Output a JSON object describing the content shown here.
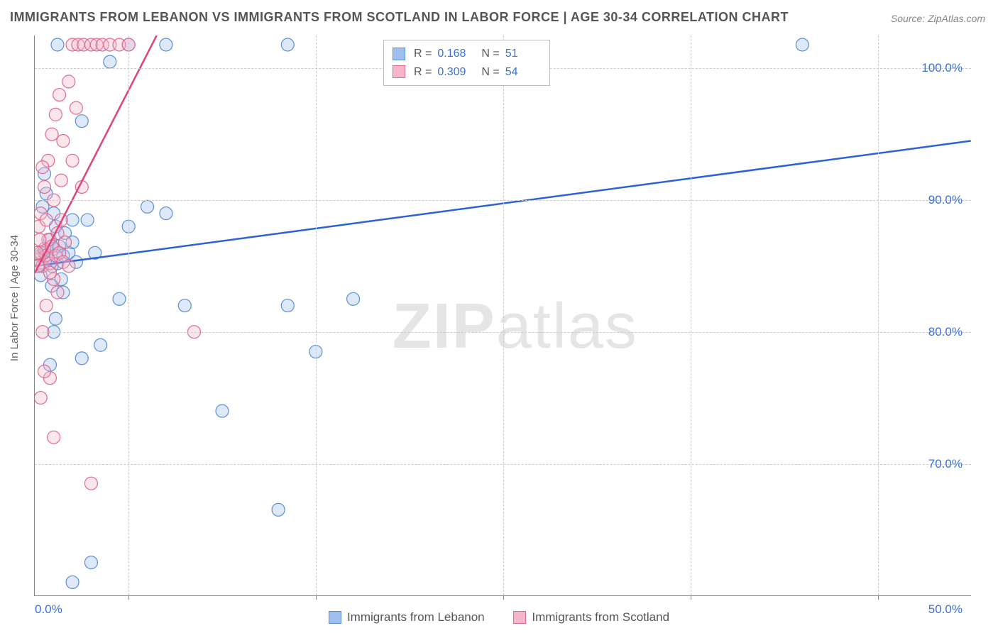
{
  "title": "IMMIGRANTS FROM LEBANON VS IMMIGRANTS FROM SCOTLAND IN LABOR FORCE | AGE 30-34 CORRELATION CHART",
  "source": "Source: ZipAtlas.com",
  "watermark_a": "ZIP",
  "watermark_b": "atlas",
  "chart": {
    "type": "scatter",
    "background_color": "#ffffff",
    "grid_color": "#cccccc",
    "axis_color": "#888888",
    "tick_label_color": "#3b6fd6",
    "axis_label_color": "#666666",
    "ylabel": "In Labor Force | Age 30-34",
    "label_fontsize": 15,
    "tick_fontsize": 17,
    "xlim": [
      0,
      50
    ],
    "ylim": [
      60,
      102.5
    ],
    "x_ticks": [
      5,
      15,
      25,
      35,
      45
    ],
    "x_tick_minor_left": "0.0%",
    "x_tick_minor_right": "50.0%",
    "y_ticks": [
      {
        "v": 70,
        "label": "70.0%"
      },
      {
        "v": 80,
        "label": "80.0%"
      },
      {
        "v": 90,
        "label": "90.0%"
      },
      {
        "v": 100,
        "label": "100.0%"
      }
    ],
    "marker_radius": 9,
    "marker_opacity": 0.35,
    "series": [
      {
        "name": "Immigrants from Lebanon",
        "color_fill": "#9fc0ee",
        "color_stroke": "#5a8fd6",
        "R": "0.168",
        "N": "51",
        "trend": {
          "x1": 0,
          "y1": 85.0,
          "x2": 50,
          "y2": 94.5,
          "stroke": "#2c62d4",
          "width": 2.5
        },
        "points": [
          [
            0.3,
            85.8
          ],
          [
            0.5,
            86.0
          ],
          [
            0.6,
            86.2
          ],
          [
            0.7,
            85.5
          ],
          [
            0.8,
            87.0
          ],
          [
            0.9,
            85.0
          ],
          [
            1.0,
            86.3
          ],
          [
            1.1,
            88.0
          ],
          [
            1.2,
            85.2
          ],
          [
            1.3,
            86.5
          ],
          [
            1.4,
            84.0
          ],
          [
            1.5,
            85.8
          ],
          [
            1.6,
            87.5
          ],
          [
            1.8,
            86.0
          ],
          [
            2.0,
            88.5
          ],
          [
            2.2,
            85.3
          ],
          [
            0.4,
            89.5
          ],
          [
            0.6,
            90.5
          ],
          [
            1.0,
            89.0
          ],
          [
            1.2,
            101.8
          ],
          [
            5.0,
            101.8
          ],
          [
            7.0,
            101.8
          ],
          [
            13.5,
            101.8
          ],
          [
            41.0,
            101.8
          ],
          [
            2.0,
            61.0
          ],
          [
            3.0,
            62.5
          ],
          [
            2.5,
            78.0
          ],
          [
            3.5,
            79.0
          ],
          [
            4.5,
            82.5
          ],
          [
            5.0,
            88.0
          ],
          [
            6.0,
            89.5
          ],
          [
            7.0,
            89.0
          ],
          [
            8.0,
            82.0
          ],
          [
            10.0,
            74.0
          ],
          [
            13.0,
            66.5
          ],
          [
            13.5,
            82.0
          ],
          [
            15.0,
            78.5
          ],
          [
            17.0,
            82.5
          ],
          [
            0.8,
            77.5
          ],
          [
            1.0,
            80.0
          ],
          [
            1.5,
            83.0
          ],
          [
            2.0,
            86.8
          ],
          [
            0.5,
            92.0
          ],
          [
            0.3,
            84.3
          ],
          [
            0.9,
            83.5
          ],
          [
            1.1,
            81.0
          ],
          [
            4.0,
            100.5
          ],
          [
            2.5,
            96.0
          ],
          [
            2.8,
            88.5
          ],
          [
            3.2,
            86.0
          ],
          [
            0.2,
            85.0
          ]
        ]
      },
      {
        "name": "Immigrants from Scotland",
        "color_fill": "#f4b6c8",
        "color_stroke": "#e06a90",
        "R": "0.309",
        "N": "54",
        "trend": {
          "x1": 0,
          "y1": 84.5,
          "x2": 6.5,
          "y2": 102.5,
          "stroke": "#e2427a",
          "width": 2.5
        },
        "points": [
          [
            0.2,
            85.5
          ],
          [
            0.3,
            86.0
          ],
          [
            0.4,
            85.0
          ],
          [
            0.5,
            86.3
          ],
          [
            0.6,
            85.8
          ],
          [
            0.7,
            87.0
          ],
          [
            0.8,
            85.2
          ],
          [
            0.9,
            86.5
          ],
          [
            1.0,
            84.0
          ],
          [
            1.1,
            85.8
          ],
          [
            1.2,
            87.5
          ],
          [
            1.3,
            86.0
          ],
          [
            1.4,
            88.5
          ],
          [
            1.5,
            85.3
          ],
          [
            1.6,
            86.8
          ],
          [
            1.8,
            85.0
          ],
          [
            0.3,
            89.0
          ],
          [
            0.5,
            91.0
          ],
          [
            0.7,
            93.0
          ],
          [
            0.9,
            95.0
          ],
          [
            1.1,
            96.5
          ],
          [
            1.3,
            98.0
          ],
          [
            1.5,
            94.5
          ],
          [
            0.4,
            80.0
          ],
          [
            0.6,
            82.0
          ],
          [
            0.8,
            76.5
          ],
          [
            1.0,
            72.0
          ],
          [
            1.2,
            83.0
          ],
          [
            0.3,
            75.0
          ],
          [
            0.5,
            77.0
          ],
          [
            2.0,
            101.8
          ],
          [
            2.3,
            101.8
          ],
          [
            2.6,
            101.8
          ],
          [
            3.0,
            101.8
          ],
          [
            3.3,
            101.8
          ],
          [
            3.6,
            101.8
          ],
          [
            4.0,
            101.8
          ],
          [
            4.5,
            101.8
          ],
          [
            5.0,
            101.8
          ],
          [
            1.8,
            99.0
          ],
          [
            2.2,
            97.0
          ],
          [
            2.0,
            93.0
          ],
          [
            2.5,
            91.0
          ],
          [
            8.5,
            80.0
          ],
          [
            0.2,
            88.0
          ],
          [
            0.4,
            92.5
          ],
          [
            0.6,
            88.5
          ],
          [
            3.0,
            68.5
          ],
          [
            0.8,
            84.5
          ],
          [
            1.0,
            90.0
          ],
          [
            1.4,
            91.5
          ],
          [
            0.1,
            86.0
          ],
          [
            0.15,
            85.0
          ],
          [
            0.25,
            87.0
          ]
        ]
      }
    ],
    "legend_top": {
      "R_label": "R =",
      "N_label": "N ="
    },
    "legend_bottom_labels": [
      "Immigrants from Lebanon",
      "Immigrants from Scotland"
    ]
  }
}
